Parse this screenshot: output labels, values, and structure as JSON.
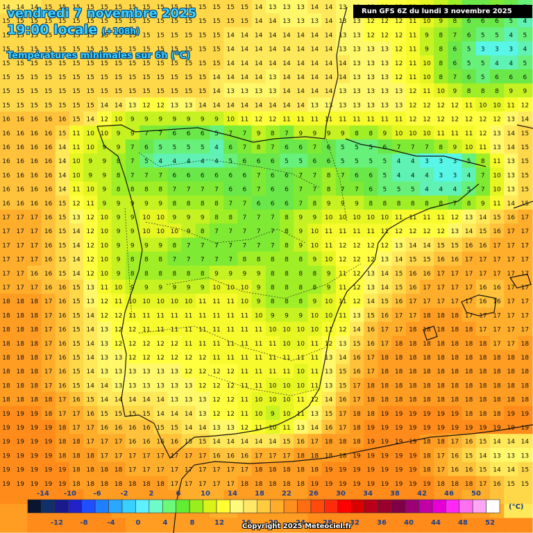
{
  "header": {
    "date": "vendredi 7 novembre 2025",
    "time": "19:00 locale",
    "lead": "(+108h)",
    "variable": "Températures minimales sur 6h (°C)",
    "run": "Run GFS 6Z du lundi 3 novembre 2025"
  },
  "footer": {
    "copyright": "Copyright 2025 Meteociel.fr"
  },
  "legend": {
    "unit": "(°C)",
    "top_labels": [
      "-14",
      "-10",
      "-6",
      "-2",
      "2",
      "6",
      "10",
      "14",
      "18",
      "22",
      "26",
      "30",
      "34",
      "38",
      "42",
      "46",
      "50"
    ],
    "bottom_labels": [
      "-12",
      "-8",
      "-4",
      "0",
      "4",
      "8",
      "12",
      "16",
      "20",
      "24",
      "28",
      "32",
      "36",
      "40",
      "44",
      "48",
      "52"
    ],
    "colors": [
      "#0a1530",
      "#11306a",
      "#1b1a8c",
      "#2222c8",
      "#1f4fff",
      "#1f7fff",
      "#2aa8ff",
      "#38d0ff",
      "#5ef0ff",
      "#6dfbc8",
      "#6cf97a",
      "#62ec32",
      "#9aee1e",
      "#d9f21a",
      "#ffff33",
      "#fffb7a",
      "#ffe866",
      "#ffcc40",
      "#ffad2a",
      "#ff8f1c",
      "#ff6d12",
      "#ff4a0c",
      "#ff2a0a",
      "#ff0000",
      "#d90000",
      "#b8001a",
      "#99002e",
      "#7f0046",
      "#9b0074",
      "#c000a5",
      "#e400d4",
      "#ff28f5",
      "#ff70f0",
      "#ffa5f5",
      "#ffffff"
    ]
  },
  "map": {
    "temperature_grid": [
      [
        14,
        14,
        14,
        15,
        15,
        15,
        15,
        15,
        15,
        15,
        15,
        15,
        15,
        15,
        15,
        15,
        15,
        15,
        14,
        13,
        13,
        13,
        14,
        14,
        13,
        13,
        13,
        12,
        12,
        11,
        10,
        9,
        8,
        6,
        6,
        7,
        6,
        5
      ],
      [
        15,
        15,
        15,
        15,
        15,
        15,
        15,
        15,
        15,
        15,
        15,
        15,
        15,
        15,
        15,
        15,
        15,
        15,
        14,
        14,
        13,
        13,
        13,
        14,
        13,
        13,
        12,
        12,
        12,
        11,
        10,
        9,
        8,
        6,
        6,
        6,
        5,
        4
      ],
      [
        15,
        15,
        15,
        15,
        15,
        15,
        15,
        15,
        15,
        15,
        15,
        15,
        15,
        15,
        15,
        15,
        14,
        14,
        14,
        14,
        14,
        14,
        14,
        14,
        13,
        13,
        12,
        12,
        12,
        11,
        9,
        8,
        7,
        6,
        5,
        5,
        4,
        5
      ],
      [
        15,
        15,
        15,
        15,
        15,
        15,
        15,
        15,
        15,
        15,
        15,
        15,
        15,
        15,
        15,
        15,
        14,
        14,
        14,
        14,
        14,
        14,
        14,
        14,
        13,
        13,
        13,
        13,
        12,
        11,
        9,
        8,
        6,
        5,
        3,
        3,
        3,
        4
      ],
      [
        15,
        15,
        15,
        15,
        15,
        15,
        15,
        15,
        15,
        15,
        15,
        15,
        15,
        15,
        15,
        15,
        14,
        14,
        14,
        14,
        14,
        14,
        14,
        14,
        14,
        13,
        13,
        13,
        12,
        11,
        10,
        8,
        6,
        5,
        5,
        4,
        4,
        5
      ],
      [
        15,
        15,
        15,
        15,
        15,
        15,
        15,
        15,
        15,
        15,
        15,
        15,
        15,
        15,
        15,
        14,
        14,
        14,
        14,
        13,
        14,
        14,
        14,
        14,
        14,
        13,
        13,
        13,
        12,
        11,
        10,
        8,
        7,
        6,
        5,
        6,
        6,
        6
      ],
      [
        15,
        15,
        15,
        15,
        15,
        15,
        15,
        15,
        15,
        15,
        15,
        15,
        15,
        15,
        15,
        14,
        13,
        13,
        13,
        13,
        14,
        14,
        14,
        14,
        13,
        13,
        13,
        13,
        13,
        12,
        11,
        10,
        9,
        8,
        8,
        8,
        9,
        9
      ],
      [
        15,
        15,
        15,
        15,
        15,
        15,
        15,
        14,
        14,
        13,
        12,
        12,
        13,
        13,
        14,
        14,
        14,
        14,
        14,
        14,
        14,
        14,
        13,
        13,
        13,
        13,
        13,
        13,
        13,
        12,
        12,
        12,
        12,
        11,
        10,
        10,
        11,
        12
      ],
      [
        16,
        16,
        16,
        16,
        16,
        15,
        14,
        12,
        10,
        9,
        9,
        9,
        9,
        9,
        9,
        9,
        10,
        11,
        12,
        12,
        11,
        11,
        11,
        11,
        11,
        11,
        11,
        11,
        11,
        12,
        12,
        12,
        12,
        12,
        12,
        12,
        13,
        14
      ],
      [
        16,
        16,
        16,
        16,
        15,
        11,
        10,
        10,
        9,
        9,
        7,
        7,
        6,
        6,
        6,
        5,
        7,
        7,
        9,
        8,
        7,
        9,
        9,
        9,
        9,
        8,
        8,
        9,
        10,
        10,
        10,
        11,
        11,
        11,
        12,
        13,
        14,
        15
      ],
      [
        16,
        16,
        16,
        16,
        14,
        11,
        10,
        9,
        9,
        7,
        6,
        5,
        5,
        5,
        5,
        4,
        6,
        7,
        8,
        7,
        6,
        6,
        7,
        6,
        5,
        5,
        5,
        6,
        7,
        7,
        7,
        8,
        9,
        10,
        11,
        13,
        14,
        15
      ],
      [
        16,
        16,
        16,
        16,
        14,
        10,
        9,
        9,
        8,
        7,
        5,
        4,
        4,
        4,
        4,
        4,
        5,
        6,
        6,
        6,
        5,
        5,
        6,
        6,
        5,
        5,
        5,
        5,
        4,
        4,
        3,
        3,
        3,
        5,
        8,
        11,
        13,
        15
      ],
      [
        16,
        16,
        16,
        16,
        14,
        10,
        9,
        9,
        8,
        7,
        7,
        7,
        6,
        6,
        6,
        6,
        6,
        6,
        7,
        6,
        6,
        7,
        7,
        8,
        7,
        6,
        6,
        5,
        4,
        4,
        4,
        3,
        3,
        4,
        7,
        10,
        13,
        15
      ],
      [
        16,
        16,
        16,
        16,
        14,
        11,
        10,
        9,
        8,
        8,
        8,
        8,
        7,
        7,
        7,
        7,
        6,
        6,
        7,
        6,
        6,
        7,
        7,
        8,
        7,
        7,
        6,
        5,
        5,
        5,
        4,
        4,
        4,
        5,
        7,
        10,
        13,
        15
      ],
      [
        16,
        16,
        16,
        16,
        15,
        12,
        11,
        9,
        9,
        9,
        9,
        9,
        8,
        8,
        8,
        8,
        7,
        7,
        6,
        6,
        6,
        7,
        8,
        9,
        9,
        9,
        8,
        8,
        8,
        8,
        8,
        8,
        7,
        8,
        9,
        11,
        14,
        15
      ],
      [
        17,
        17,
        17,
        16,
        15,
        13,
        12,
        10,
        9,
        9,
        10,
        10,
        9,
        9,
        9,
        8,
        8,
        7,
        7,
        7,
        8,
        9,
        9,
        10,
        10,
        10,
        10,
        10,
        11,
        11,
        11,
        11,
        12,
        13,
        14,
        15,
        16,
        17
      ],
      [
        17,
        17,
        17,
        16,
        15,
        14,
        12,
        10,
        9,
        9,
        10,
        10,
        10,
        9,
        8,
        7,
        7,
        7,
        7,
        7,
        8,
        9,
        10,
        11,
        11,
        11,
        11,
        11,
        12,
        12,
        12,
        12,
        13,
        14,
        15,
        16,
        17,
        17
      ],
      [
        17,
        17,
        17,
        16,
        15,
        14,
        12,
        10,
        9,
        9,
        9,
        9,
        8,
        7,
        7,
        7,
        7,
        7,
        7,
        7,
        8,
        9,
        10,
        11,
        12,
        12,
        12,
        12,
        13,
        14,
        14,
        15,
        15,
        16,
        16,
        17,
        17,
        17
      ],
      [
        17,
        17,
        17,
        16,
        15,
        14,
        12,
        10,
        9,
        8,
        8,
        8,
        7,
        7,
        7,
        7,
        7,
        8,
        8,
        8,
        8,
        8,
        9,
        10,
        12,
        12,
        12,
        13,
        14,
        15,
        15,
        16,
        16,
        17,
        17,
        17,
        17,
        17
      ],
      [
        17,
        17,
        16,
        16,
        15,
        14,
        12,
        10,
        9,
        8,
        8,
        8,
        8,
        8,
        8,
        9,
        9,
        9,
        9,
        8,
        8,
        8,
        8,
        9,
        11,
        12,
        13,
        14,
        15,
        16,
        16,
        17,
        17,
        17,
        17,
        17,
        17,
        17
      ],
      [
        17,
        17,
        17,
        16,
        16,
        15,
        13,
        11,
        10,
        9,
        9,
        9,
        9,
        9,
        9,
        10,
        10,
        10,
        9,
        8,
        8,
        8,
        8,
        9,
        11,
        12,
        13,
        14,
        15,
        16,
        17,
        17,
        17,
        17,
        16,
        16,
        17,
        17
      ],
      [
        18,
        18,
        18,
        17,
        16,
        15,
        13,
        12,
        11,
        10,
        10,
        10,
        10,
        10,
        11,
        11,
        11,
        10,
        9,
        8,
        8,
        8,
        9,
        10,
        11,
        12,
        14,
        15,
        16,
        17,
        17,
        17,
        17,
        17,
        16,
        16,
        17,
        17
      ],
      [
        18,
        18,
        18,
        17,
        16,
        15,
        14,
        12,
        12,
        11,
        11,
        11,
        11,
        11,
        11,
        11,
        11,
        11,
        10,
        9,
        9,
        9,
        10,
        10,
        11,
        13,
        15,
        16,
        17,
        17,
        18,
        18,
        18,
        17,
        17,
        17,
        17,
        17
      ],
      [
        18,
        18,
        18,
        17,
        16,
        15,
        14,
        13,
        12,
        12,
        11,
        11,
        11,
        11,
        11,
        11,
        11,
        11,
        11,
        10,
        10,
        10,
        10,
        11,
        12,
        14,
        16,
        17,
        17,
        18,
        18,
        18,
        18,
        18,
        17,
        17,
        17,
        17
      ],
      [
        18,
        18,
        18,
        17,
        16,
        15,
        14,
        13,
        12,
        12,
        12,
        12,
        12,
        11,
        11,
        11,
        11,
        11,
        11,
        11,
        10,
        10,
        11,
        12,
        13,
        15,
        16,
        17,
        18,
        18,
        18,
        18,
        18,
        18,
        18,
        17,
        17,
        18
      ],
      [
        18,
        18,
        18,
        17,
        16,
        15,
        14,
        13,
        13,
        12,
        12,
        12,
        12,
        12,
        12,
        11,
        11,
        11,
        11,
        11,
        11,
        11,
        11,
        13,
        14,
        16,
        17,
        18,
        18,
        18,
        18,
        18,
        18,
        18,
        18,
        18,
        18,
        18
      ],
      [
        18,
        18,
        18,
        17,
        16,
        15,
        14,
        13,
        13,
        13,
        13,
        13,
        13,
        12,
        12,
        12,
        12,
        11,
        11,
        11,
        11,
        10,
        11,
        13,
        15,
        16,
        17,
        18,
        18,
        18,
        18,
        18,
        18,
        18,
        18,
        18,
        18,
        18
      ],
      [
        18,
        18,
        18,
        17,
        16,
        15,
        14,
        14,
        13,
        13,
        13,
        13,
        13,
        13,
        12,
        12,
        12,
        11,
        11,
        10,
        10,
        10,
        11,
        13,
        15,
        17,
        18,
        18,
        18,
        18,
        18,
        18,
        18,
        18,
        18,
        18,
        18,
        18
      ],
      [
        18,
        18,
        18,
        18,
        17,
        16,
        15,
        14,
        14,
        14,
        14,
        14,
        13,
        13,
        13,
        12,
        12,
        11,
        10,
        10,
        10,
        11,
        12,
        14,
        16,
        17,
        18,
        18,
        18,
        18,
        18,
        18,
        18,
        18,
        18,
        18,
        18,
        18
      ],
      [
        19,
        19,
        19,
        18,
        17,
        17,
        16,
        15,
        15,
        15,
        15,
        14,
        14,
        14,
        13,
        12,
        12,
        11,
        10,
        9,
        10,
        11,
        13,
        15,
        17,
        18,
        18,
        19,
        19,
        19,
        19,
        19,
        19,
        18,
        18,
        18,
        19,
        19
      ],
      [
        19,
        19,
        19,
        19,
        18,
        17,
        17,
        16,
        16,
        16,
        16,
        15,
        15,
        14,
        14,
        13,
        13,
        12,
        11,
        10,
        11,
        13,
        14,
        16,
        17,
        18,
        19,
        19,
        19,
        19,
        19,
        19,
        19,
        19,
        19,
        19,
        19,
        19
      ],
      [
        19,
        19,
        19,
        19,
        18,
        18,
        17,
        17,
        17,
        16,
        16,
        16,
        16,
        15,
        15,
        14,
        14,
        14,
        14,
        14,
        15,
        16,
        17,
        18,
        18,
        18,
        19,
        19,
        19,
        19,
        18,
        18,
        17,
        16,
        15,
        14,
        14,
        14
      ],
      [
        19,
        19,
        19,
        19,
        18,
        18,
        18,
        17,
        17,
        17,
        17,
        17,
        17,
        17,
        17,
        16,
        16,
        16,
        17,
        17,
        17,
        18,
        18,
        18,
        18,
        19,
        19,
        19,
        19,
        19,
        18,
        17,
        16,
        15,
        14,
        13,
        13,
        13
      ],
      [
        19,
        19,
        19,
        19,
        19,
        18,
        18,
        18,
        18,
        17,
        17,
        17,
        17,
        17,
        17,
        17,
        17,
        17,
        18,
        18,
        18,
        18,
        18,
        19,
        19,
        19,
        19,
        19,
        19,
        19,
        18,
        17,
        16,
        16,
        15,
        14,
        14,
        15
      ],
      [
        19,
        19,
        19,
        19,
        19,
        18,
        18,
        18,
        18,
        18,
        18,
        18,
        17,
        17,
        17,
        17,
        17,
        18,
        18,
        18,
        18,
        18,
        19,
        19,
        19,
        19,
        19,
        19,
        19,
        19,
        19,
        18,
        18,
        18,
        17,
        16,
        15,
        15
      ],
      [
        19,
        19,
        19,
        19,
        19,
        19,
        18,
        18,
        18,
        18,
        18,
        18,
        18,
        17,
        17,
        17,
        18,
        18,
        18,
        18,
        18,
        18,
        19,
        19,
        19,
        19,
        19,
        19,
        19,
        19,
        19,
        18,
        18,
        17,
        17,
        16,
        15,
        15
      ],
      [
        18,
        18,
        19,
        19,
        19,
        19,
        19,
        19,
        18,
        18,
        18,
        18,
        18,
        18,
        18,
        17,
        17,
        18,
        18,
        18,
        18,
        18,
        19,
        19,
        19,
        19,
        19,
        19,
        19,
        19,
        19,
        19,
        19,
        18,
        18,
        17,
        14,
        14
      ],
      [
        18,
        18,
        19,
        19,
        19,
        19,
        19,
        19,
        19,
        18,
        18,
        18,
        18,
        18,
        18,
        18,
        18,
        18,
        18,
        18,
        18,
        18,
        19,
        19,
        19,
        19,
        19,
        19,
        19,
        19,
        19,
        19,
        19,
        19,
        19,
        19,
        19,
        19
      ]
    ]
  }
}
